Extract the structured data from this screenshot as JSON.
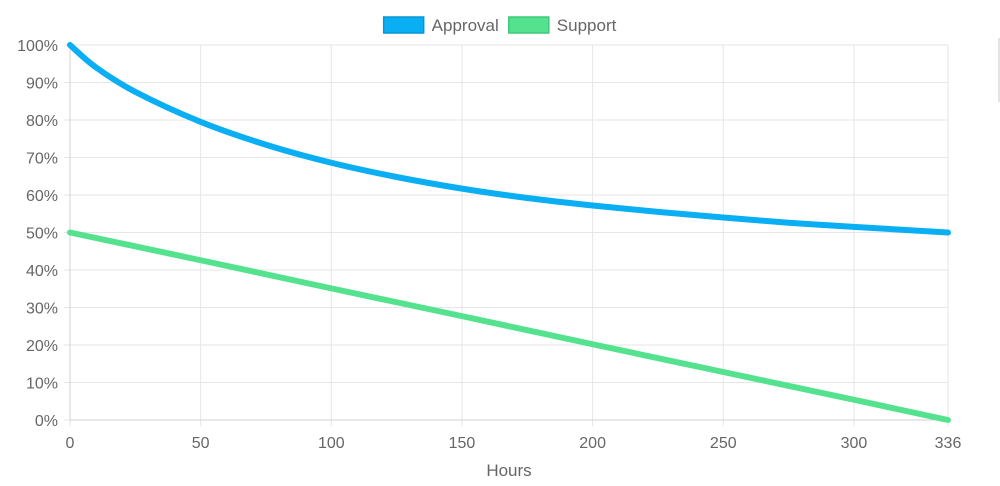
{
  "chart_data": {
    "type": "line",
    "title": "",
    "xlabel": "Hours",
    "ylabel": "",
    "xlim": [
      0,
      336
    ],
    "ylim": [
      0,
      100
    ],
    "x_ticks": [
      0,
      50,
      100,
      150,
      200,
      250,
      300,
      336
    ],
    "y_ticks": [
      0,
      10,
      20,
      30,
      40,
      50,
      60,
      70,
      80,
      90,
      100
    ],
    "y_tick_suffix": "%",
    "grid": true,
    "legend": "top-center",
    "series": [
      {
        "name": "Approval",
        "color": "#0aaef2",
        "x": [
          0,
          10,
          25,
          50,
          75,
          100,
          125,
          150,
          175,
          200,
          225,
          250,
          275,
          300,
          336
        ],
        "values": [
          100,
          94,
          87.5,
          79.5,
          73.4,
          68.6,
          64.8,
          61.7,
          59.2,
          57.2,
          55.5,
          54,
          52.6,
          51.5,
          50
        ]
      },
      {
        "name": "Support",
        "color": "#55e28e",
        "x": [
          0,
          50,
          100,
          150,
          200,
          250,
          300,
          336
        ],
        "values": [
          50,
          42.6,
          35.1,
          27.7,
          20.2,
          12.8,
          5.4,
          0
        ]
      }
    ]
  }
}
